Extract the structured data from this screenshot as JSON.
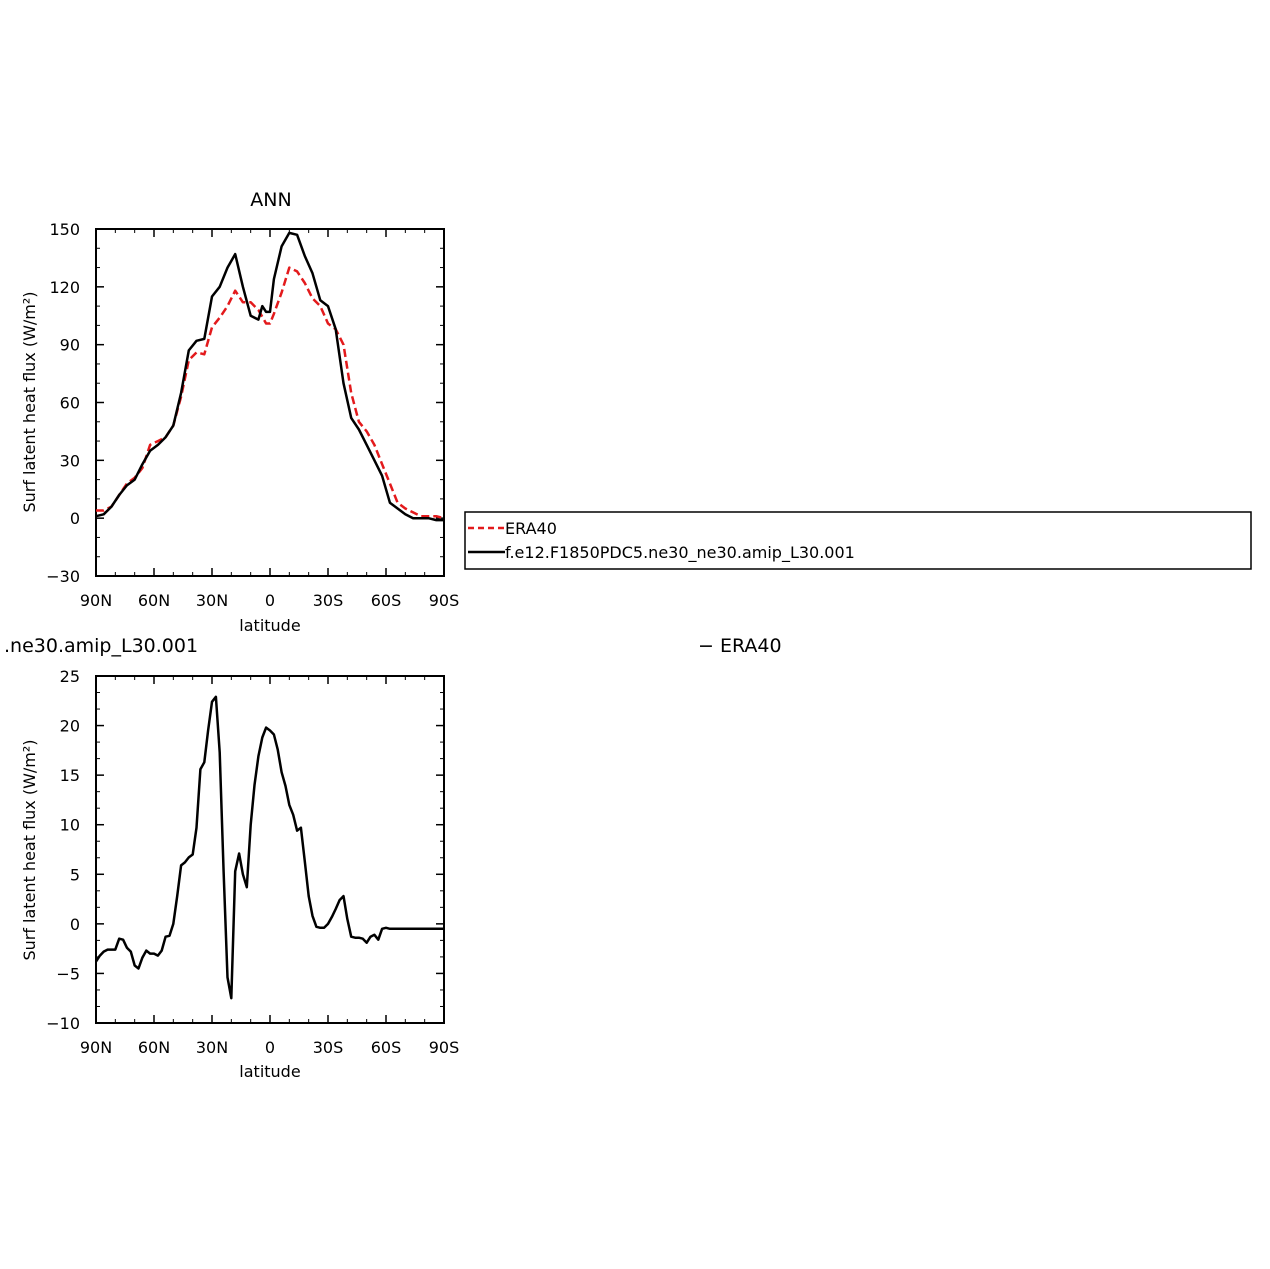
{
  "chart_data": [
    {
      "type": "line",
      "title": "ANN",
      "xlabel": "latitude",
      "ylabel": "Surf latent heat flux (W/m²)",
      "xlim": [
        90,
        -90
      ],
      "ylim": [
        -30,
        150
      ],
      "x_ticks": [
        "90N",
        "60N",
        "30N",
        "0",
        "30S",
        "60S",
        "90S"
      ],
      "y_ticks": [
        "−30",
        "0",
        "30",
        "60",
        "90",
        "120",
        "150"
      ],
      "legend": {
        "placement": "right",
        "entries": [
          "ERA40",
          "f.e12.F1850PDC5.ne30_ne30.amip_L30.001"
        ]
      },
      "series": [
        {
          "name": "ERA40",
          "color": "#e31a1c",
          "style": "dashed",
          "x": [
            90,
            86,
            82,
            78,
            74,
            70,
            66,
            62,
            58,
            54,
            50,
            46,
            42,
            38,
            34,
            30,
            26,
            22,
            18,
            14,
            10,
            6,
            2,
            0,
            -2,
            -6,
            -10,
            -14,
            -18,
            -22,
            -26,
            -30,
            -34,
            -38,
            -42,
            -46,
            -50,
            -54,
            -58,
            -62,
            -66,
            -70,
            -74,
            -78,
            -82,
            -86,
            -90
          ],
          "values": [
            4,
            4,
            6,
            12,
            18,
            21,
            26,
            38,
            40,
            42,
            48,
            63,
            82,
            86,
            85,
            99,
            104,
            110,
            118,
            112,
            112,
            108,
            101,
            101,
            106,
            117,
            130,
            128,
            122,
            114,
            110,
            101,
            98,
            90,
            65,
            50,
            45,
            38,
            28,
            18,
            8,
            5,
            3,
            1,
            1,
            1,
            0
          ]
        },
        {
          "name": "f.e12.F1850PDC5.ne30_ne30.amip_L30.001",
          "color": "#000000",
          "style": "solid",
          "x": [
            90,
            86,
            82,
            78,
            74,
            70,
            66,
            62,
            58,
            54,
            50,
            46,
            42,
            38,
            34,
            30,
            26,
            22,
            18,
            14,
            10,
            6,
            4,
            2,
            0,
            -2,
            -6,
            -10,
            -14,
            -18,
            -22,
            -26,
            -30,
            -34,
            -38,
            -42,
            -46,
            -50,
            -54,
            -58,
            -62,
            -66,
            -70,
            -74,
            -78,
            -82,
            -86,
            -90
          ],
          "values": [
            1,
            2,
            6,
            12,
            17,
            20,
            28,
            35,
            38,
            42,
            48,
            65,
            87,
            92,
            93,
            115,
            120,
            130,
            137,
            120,
            105,
            103,
            110,
            107,
            107,
            124,
            141,
            148,
            147,
            136,
            127,
            113,
            110,
            98,
            70,
            52,
            46,
            38,
            30,
            22,
            8,
            5,
            2,
            0,
            0,
            0,
            -1,
            -1
          ]
        }
      ]
    },
    {
      "type": "line",
      "title": ".ne30.amip_L30.001",
      "title_right": "− ERA40",
      "xlabel": "latitude",
      "ylabel": "Surf latent heat flux (W/m²)",
      "xlim": [
        90,
        -90
      ],
      "ylim": [
        -10,
        25
      ],
      "x_ticks": [
        "90N",
        "60N",
        "30N",
        "0",
        "30S",
        "60S",
        "90S"
      ],
      "y_ticks": [
        "−10",
        "−5",
        "0",
        "5",
        "10",
        "15",
        "20",
        "25"
      ],
      "series": [
        {
          "color": "#000000",
          "style": "solid",
          "x": [
            90,
            88,
            86,
            84,
            82,
            80,
            78,
            76,
            74,
            72,
            70,
            68,
            66,
            64,
            62,
            60,
            58,
            56,
            54,
            52,
            50,
            48,
            46,
            44,
            42,
            40,
            38,
            36,
            34,
            32,
            30,
            28,
            26,
            24,
            22,
            20,
            18,
            16,
            14,
            12,
            10,
            8,
            6,
            4,
            2,
            0,
            -2,
            -4,
            -6,
            -8,
            -10,
            -12,
            -14,
            -16,
            -18,
            -20,
            -22,
            -24,
            -26,
            -28,
            -30,
            -32,
            -34,
            -36,
            -38,
            -40,
            -42,
            -44,
            -46,
            -48,
            -50,
            -52,
            -54,
            -56,
            -58,
            -60,
            -62,
            -64,
            -66,
            -68,
            -70,
            -72,
            -74,
            -76,
            -78,
            -80,
            -82,
            -84,
            -86,
            -88,
            -90
          ],
          "values": [
            -3.8,
            -3.2,
            -2.8,
            -2.6,
            -2.6,
            -2.6,
            -1.5,
            -1.6,
            -2.4,
            -2.8,
            -4.2,
            -4.5,
            -3.4,
            -2.7,
            -3.0,
            -3.0,
            -3.2,
            -2.7,
            -1.3,
            -1.2,
            0.0,
            2.8,
            5.9,
            6.2,
            6.7,
            7.0,
            9.7,
            15.6,
            16.3,
            19.5,
            22.4,
            22.9,
            17.3,
            5.3,
            -5.4,
            -7.5,
            5.3,
            7.1,
            5.0,
            3.7,
            10.0,
            14.0,
            16.9,
            18.8,
            19.8,
            19.5,
            19.1,
            17.6,
            15.3,
            13.9,
            12.0,
            11.0,
            9.4,
            9.7,
            6.3,
            2.8,
            0.8,
            -0.3,
            -0.4,
            -0.4,
            0.0,
            0.7,
            1.5,
            2.4,
            2.8,
            0.5,
            -1.3,
            -1.4,
            -1.4,
            -1.5,
            -1.9,
            -1.3,
            -1.1,
            -1.6,
            -0.5,
            -0.4,
            -0.5,
            -0.5,
            -0.5,
            -0.5,
            -0.5,
            -0.5,
            -0.5,
            -0.5,
            -0.5,
            -0.5,
            -0.5,
            -0.5,
            -0.5,
            -0.5,
            -0.5
          ]
        }
      ]
    }
  ]
}
